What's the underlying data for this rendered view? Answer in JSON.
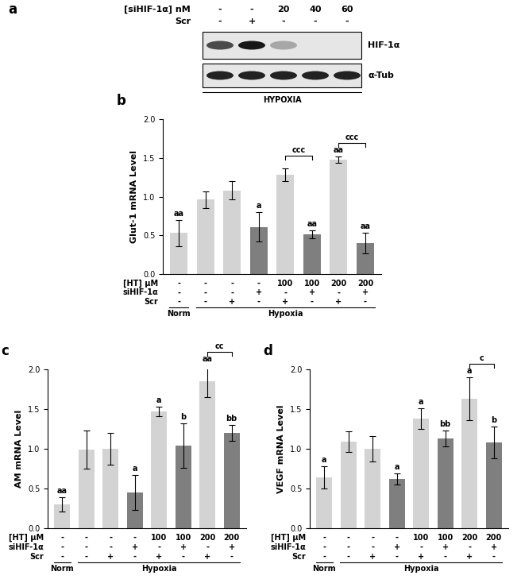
{
  "blot": {
    "panel": "a",
    "header_rows": [
      {
        "label": "[siHIF-1α] nM",
        "values": [
          "-",
          "-",
          "20",
          "40",
          "60"
        ]
      },
      {
        "label": "Scr",
        "values": [
          "-",
          "+",
          "-",
          "-",
          "-"
        ]
      }
    ],
    "bands": [
      {
        "label": "HIF-1α",
        "intensity": [
          0.75,
          1.0,
          0.3,
          0,
          0
        ]
      },
      {
        "label": "α-Tub",
        "intensity": [
          0.95,
          0.95,
          0.95,
          0.95,
          0.95
        ]
      }
    ],
    "footer": "HYPOXIA"
  },
  "chart_data": [
    {
      "panel": "b",
      "type": "bar",
      "y_label": "Glut-1 mRNA Level",
      "tick_labels": "y",
      "ylim": [
        0,
        2
      ],
      "yticks": [
        {
          "value": 0,
          "label": "0.0"
        },
        {
          "value": 0.5,
          "label": "0.5"
        },
        {
          "value": 1,
          "label": "1.0"
        },
        {
          "value": 1.5,
          "label": "1.5"
        },
        {
          "value": 2,
          "label": "2.0"
        }
      ],
      "values": [
        0.53,
        0.96,
        1.08,
        0.61,
        1.28,
        0.51,
        1.48,
        0.4
      ],
      "errors": [
        0.17,
        0.11,
        0.12,
        0.19,
        0.08,
        0.05,
        0.04,
        0.13
      ],
      "colors": [
        "#d3d3d3",
        "#d3d3d3",
        "#d3d3d3",
        "#7f7f7f",
        "#d3d3d3",
        "#7f7f7f",
        "#d3d3d3",
        "#7f7f7f"
      ],
      "significance": [
        "aa",
        null,
        null,
        "a",
        null,
        "aa",
        "aa",
        "aa"
      ],
      "brackets": [
        {
          "from": 4,
          "to": 5,
          "label": "ccc"
        },
        {
          "from": 6,
          "to": 7,
          "label": "ccc"
        }
      ],
      "conditions": [
        {
          "label": "[HT] μM",
          "values": [
            "-",
            "-",
            "-",
            "-",
            "100",
            "100",
            "200",
            "200"
          ]
        },
        {
          "label": "siHIF-1α",
          "values": [
            "-",
            "-",
            "-",
            "+",
            "-",
            "+",
            "-",
            "+"
          ]
        },
        {
          "label": "Scr",
          "values": [
            "-",
            "-",
            "+",
            "-",
            "+",
            "-",
            "+",
            "-"
          ]
        }
      ],
      "groups": [
        {
          "label": "Norm",
          "from": 0,
          "to": 0
        },
        {
          "label": "Hypoxia",
          "from": 1,
          "to": 7
        }
      ]
    },
    {
      "panel": "c",
      "type": "bar",
      "y_label": "AM mRNA Level",
      "tick_labels": "y",
      "ylim": [
        0,
        2
      ],
      "yticks": [
        {
          "value": 0,
          "label": "0.0"
        },
        {
          "value": 0.5,
          "label": "0.5"
        },
        {
          "value": 1,
          "label": "1.0"
        },
        {
          "value": 1.5,
          "label": "1.5"
        },
        {
          "value": 2,
          "label": "2.0"
        }
      ],
      "values": [
        0.3,
        0.99,
        1.0,
        0.45,
        1.47,
        1.04,
        1.85,
        1.2
      ],
      "errors": [
        0.09,
        0.24,
        0.2,
        0.22,
        0.06,
        0.28,
        0.2,
        0.1
      ],
      "colors": [
        "#d3d3d3",
        "#d3d3d3",
        "#d3d3d3",
        "#7f7f7f",
        "#d3d3d3",
        "#7f7f7f",
        "#d3d3d3",
        "#7f7f7f"
      ],
      "significance": [
        "aa",
        null,
        null,
        "a",
        "a",
        "b",
        "aa",
        "bb"
      ],
      "brackets": [
        {
          "from": 6,
          "to": 7,
          "label": "cc"
        }
      ],
      "conditions": [
        {
          "label": "[HT] μM",
          "values": [
            "-",
            "-",
            "-",
            "-",
            "100",
            "100",
            "200",
            "200"
          ]
        },
        {
          "label": "siHIF-1α",
          "values": [
            "-",
            "-",
            "-",
            "+",
            "-",
            "+",
            "-",
            "+"
          ]
        },
        {
          "label": "Scr",
          "values": [
            "-",
            "-",
            "+",
            "-",
            "+",
            "-",
            "+",
            "-"
          ]
        }
      ],
      "groups": [
        {
          "label": "Norm",
          "from": 0,
          "to": 0
        },
        {
          "label": "Hypoxia",
          "from": 1,
          "to": 7
        }
      ]
    },
    {
      "panel": "d",
      "type": "bar",
      "y_label": "VEGF mRNA Level",
      "tick_labels": "y",
      "ylim": [
        0,
        2
      ],
      "yticks": [
        {
          "value": 0,
          "label": "0.0"
        },
        {
          "value": 0.5,
          "label": "0.5"
        },
        {
          "value": 1,
          "label": "1.0"
        },
        {
          "value": 1.5,
          "label": "1.5"
        },
        {
          "value": 2,
          "label": "2.0"
        }
      ],
      "values": [
        0.64,
        1.09,
        1.0,
        0.62,
        1.38,
        1.13,
        1.63,
        1.08
      ],
      "errors": [
        0.14,
        0.13,
        0.16,
        0.07,
        0.13,
        0.1,
        0.27,
        0.2
      ],
      "colors": [
        "#d3d3d3",
        "#d3d3d3",
        "#d3d3d3",
        "#7f7f7f",
        "#d3d3d3",
        "#7f7f7f",
        "#d3d3d3",
        "#7f7f7f"
      ],
      "significance": [
        "a",
        null,
        null,
        "a",
        "a",
        "bb",
        "a",
        "b"
      ],
      "brackets": [
        {
          "from": 6,
          "to": 7,
          "label": "c"
        }
      ],
      "conditions": [
        {
          "label": "[HT] μM",
          "values": [
            "-",
            "-",
            "-",
            "-",
            "100",
            "100",
            "200",
            "200"
          ]
        },
        {
          "label": "siHIF-1α",
          "values": [
            "-",
            "-",
            "-",
            "+",
            "-",
            "+",
            "-",
            "+"
          ]
        },
        {
          "label": "Scr",
          "values": [
            "-",
            "-",
            "+",
            "-",
            "+",
            "-",
            "+",
            "-"
          ]
        }
      ],
      "groups": [
        {
          "label": "Norm",
          "from": 0,
          "to": 0
        },
        {
          "label": "Hypoxia",
          "from": 1,
          "to": 7
        }
      ]
    }
  ]
}
